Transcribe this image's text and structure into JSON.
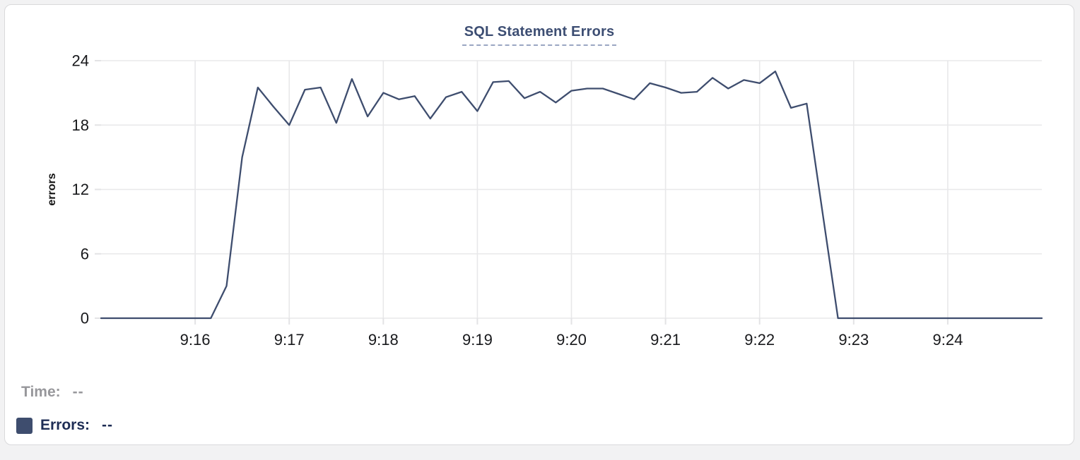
{
  "chart_data": {
    "type": "line",
    "title": "SQL Statement Errors",
    "xlabel": "",
    "ylabel": "errors",
    "ylim": [
      0,
      24
    ],
    "y_ticks": [
      0,
      6,
      12,
      18,
      24
    ],
    "x_tick_times": [
      "9:16:00",
      "9:17:00",
      "9:18:00",
      "9:19:00",
      "9:20:00",
      "9:21:00",
      "9:22:00",
      "9:23:00",
      "9:24:00"
    ],
    "x_tick_labels": [
      "9:16",
      "9:17",
      "9:18",
      "9:19",
      "9:20",
      "9:21",
      "9:22",
      "9:23",
      "9:24"
    ],
    "grid": true,
    "legend_position": "bottom-left",
    "x": [
      "9:15:00",
      "9:15:10",
      "9:15:20",
      "9:15:30",
      "9:15:40",
      "9:15:50",
      "9:16:00",
      "9:16:10",
      "9:16:20",
      "9:16:30",
      "9:16:40",
      "9:16:50",
      "9:17:00",
      "9:17:10",
      "9:17:20",
      "9:17:30",
      "9:17:40",
      "9:17:50",
      "9:18:00",
      "9:18:10",
      "9:18:20",
      "9:18:30",
      "9:18:40",
      "9:18:50",
      "9:19:00",
      "9:19:10",
      "9:19:20",
      "9:19:30",
      "9:19:40",
      "9:19:50",
      "9:20:00",
      "9:20:10",
      "9:20:20",
      "9:20:30",
      "9:20:40",
      "9:20:50",
      "9:21:00",
      "9:21:10",
      "9:21:20",
      "9:21:30",
      "9:21:40",
      "9:21:50",
      "9:22:00",
      "9:22:10",
      "9:22:20",
      "9:22:30",
      "9:22:40",
      "9:22:50",
      "9:23:00",
      "9:23:10",
      "9:23:20",
      "9:23:30",
      "9:23:40",
      "9:23:50",
      "9:24:00",
      "9:24:10",
      "9:24:20",
      "9:24:30",
      "9:24:40",
      "9:24:50",
      "9:25:00"
    ],
    "series": [
      {
        "name": "Errors",
        "values": [
          0,
          0,
          0,
          0,
          0,
          0,
          0,
          0,
          3,
          15,
          21.5,
          19.7,
          18,
          21.3,
          21.5,
          18.2,
          22.3,
          18.8,
          21,
          20.4,
          20.7,
          18.6,
          20.6,
          21.1,
          19.3,
          22,
          22.1,
          20.5,
          21.1,
          20.1,
          21.2,
          21.4,
          21.4,
          20.9,
          20.4,
          21.9,
          21.5,
          21,
          21.1,
          22.4,
          21.4,
          22.2,
          21.9,
          23,
          19.6,
          20,
          10,
          0,
          0,
          0,
          0,
          0,
          0,
          0,
          0,
          0,
          0,
          0,
          0,
          0,
          0
        ]
      }
    ]
  },
  "tooltip": {
    "time_label": "Time:",
    "time_value": "--",
    "errors_label": "Errors:",
    "errors_value": "--"
  },
  "theme": {
    "series_color": "#3e4d6e",
    "grid_color": "#e8e8ea",
    "tick_color": "#e3e3e5",
    "axis_text_color": "#18191c",
    "axis_label_color": "#111111",
    "title_color": "#3d4e73",
    "title_underline_color": "#9aa6c2",
    "time_text_color": "#97979b",
    "errors_text_color": "#1e2d55",
    "card_border_color": "#d9d9db",
    "card_bg": "#ffffff",
    "page_bg": "#f2f2f3"
  }
}
